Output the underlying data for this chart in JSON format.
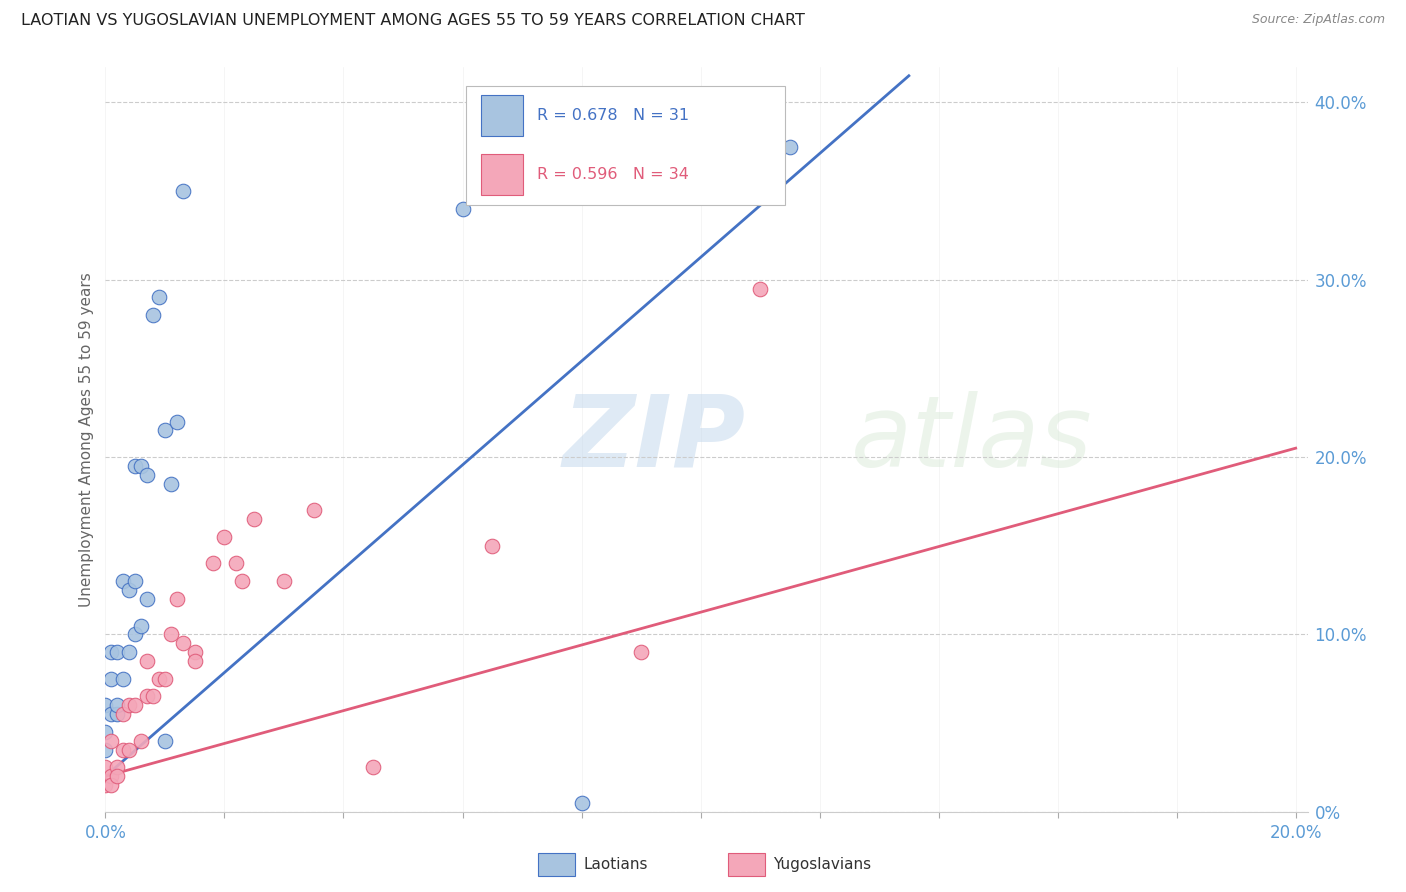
{
  "title": "LAOTIAN VS YUGOSLAVIAN UNEMPLOYMENT AMONG AGES 55 TO 59 YEARS CORRELATION CHART",
  "source": "Source: ZipAtlas.com",
  "ylabel": "Unemployment Among Ages 55 to 59 years",
  "laotian_color": "#a8c4e0",
  "laotian_line_color": "#4472c4",
  "yugoslavian_color": "#f4a7b9",
  "yugoslavian_line_color": "#e05c7a",
  "background_color": "#ffffff",
  "laotian_x": [
    0.0,
    0.0,
    0.0,
    0.001,
    0.001,
    0.001,
    0.002,
    0.002,
    0.002,
    0.003,
    0.003,
    0.004,
    0.004,
    0.005,
    0.005,
    0.005,
    0.006,
    0.006,
    0.007,
    0.007,
    0.008,
    0.009,
    0.01,
    0.01,
    0.011,
    0.012,
    0.013,
    0.06,
    0.062,
    0.08,
    0.115
  ],
  "laotian_y": [
    0.035,
    0.045,
    0.06,
    0.055,
    0.075,
    0.09,
    0.055,
    0.06,
    0.09,
    0.075,
    0.13,
    0.09,
    0.125,
    0.1,
    0.13,
    0.195,
    0.105,
    0.195,
    0.12,
    0.19,
    0.28,
    0.29,
    0.215,
    0.04,
    0.185,
    0.22,
    0.35,
    0.34,
    0.365,
    0.005,
    0.375
  ],
  "yugoslavian_x": [
    0.0,
    0.0,
    0.001,
    0.001,
    0.001,
    0.002,
    0.002,
    0.003,
    0.003,
    0.004,
    0.004,
    0.005,
    0.006,
    0.007,
    0.007,
    0.008,
    0.009,
    0.01,
    0.011,
    0.012,
    0.013,
    0.015,
    0.015,
    0.018,
    0.02,
    0.022,
    0.023,
    0.025,
    0.03,
    0.035,
    0.045,
    0.065,
    0.09,
    0.11
  ],
  "yugoslavian_y": [
    0.015,
    0.025,
    0.02,
    0.04,
    0.015,
    0.025,
    0.02,
    0.035,
    0.055,
    0.06,
    0.035,
    0.06,
    0.04,
    0.065,
    0.085,
    0.065,
    0.075,
    0.075,
    0.1,
    0.12,
    0.095,
    0.09,
    0.085,
    0.14,
    0.155,
    0.14,
    0.13,
    0.165,
    0.13,
    0.17,
    0.025,
    0.15,
    0.09,
    0.295
  ],
  "laotian_trend_x": [
    0.0,
    0.135
  ],
  "laotian_trend_y": [
    0.02,
    0.415
  ],
  "yugoslavian_trend_x": [
    0.0,
    0.2
  ],
  "yugoslavian_trend_y": [
    0.02,
    0.205
  ],
  "xlim": [
    0.0,
    0.202
  ],
  "ylim": [
    0.0,
    0.42
  ],
  "x_ticks": [
    0.0,
    0.02,
    0.04,
    0.06,
    0.08,
    0.1,
    0.12,
    0.14,
    0.16,
    0.18,
    0.2
  ],
  "y_ticks": [
    0.0,
    0.1,
    0.2,
    0.3,
    0.4
  ],
  "y_tick_labels": [
    "0%",
    "10.0%",
    "20.0%",
    "30.0%",
    "40.0%"
  ],
  "legend_r1": "R = 0.678",
  "legend_n1": "N = 31",
  "legend_r2": "R = 0.596",
  "legend_n2": "N = 34"
}
